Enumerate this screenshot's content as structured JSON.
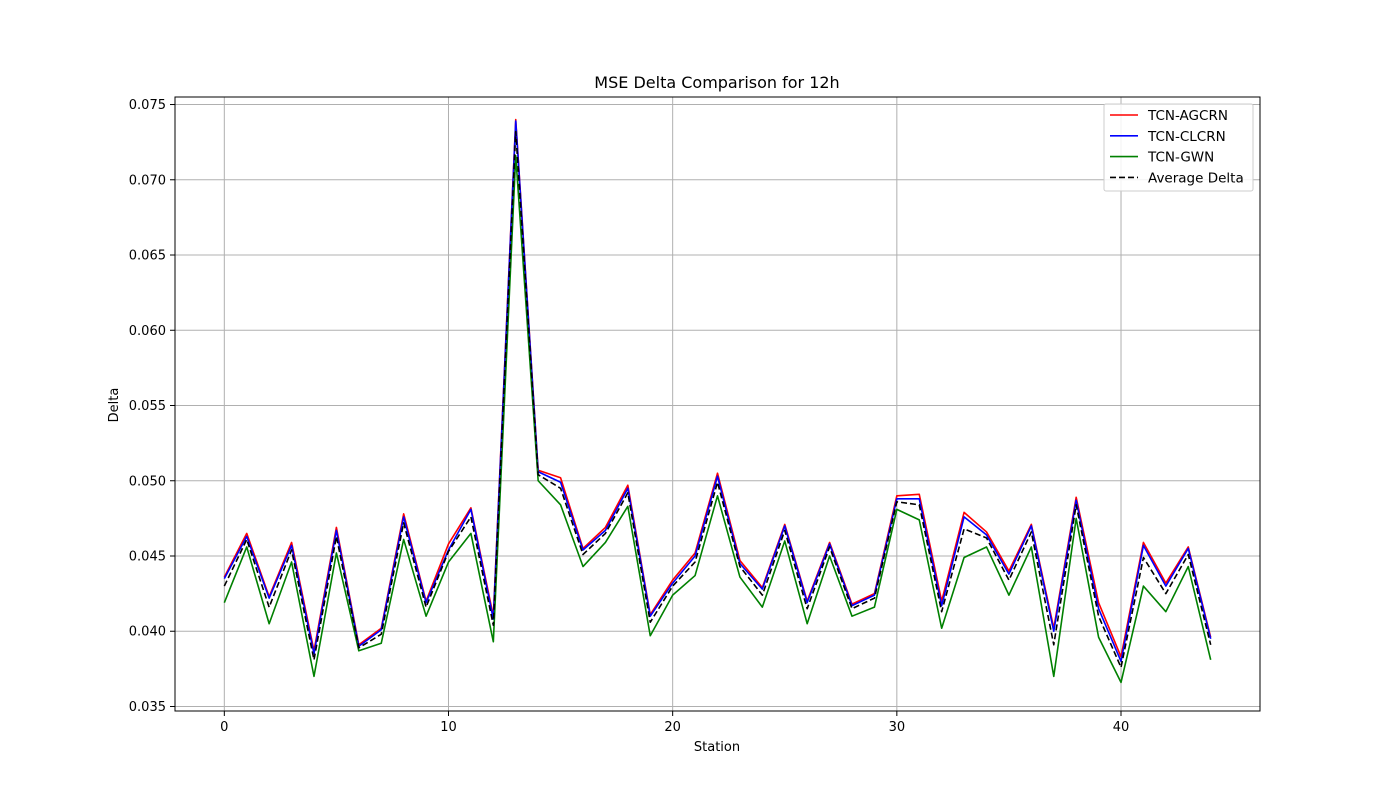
{
  "chart_data": {
    "type": "line",
    "title": "MSE Delta Comparison for 12h",
    "xlabel": "Station",
    "ylabel": "Delta",
    "xlim": [
      -2.2,
      46.2
    ],
    "ylim": [
      0.0347,
      0.0755
    ],
    "xticks": [
      0,
      10,
      20,
      30,
      40
    ],
    "xtick_labels": [
      "0",
      "10",
      "20",
      "30",
      "40"
    ],
    "yticks": [
      0.035,
      0.04,
      0.045,
      0.05,
      0.055,
      0.06,
      0.065,
      0.07,
      0.075
    ],
    "ytick_labels": [
      "0.035",
      "0.040",
      "0.045",
      "0.050",
      "0.055",
      "0.060",
      "0.065",
      "0.070",
      "0.075"
    ],
    "grid": true,
    "legend_position": "top-right",
    "x": [
      0,
      1,
      2,
      3,
      4,
      5,
      6,
      7,
      8,
      9,
      10,
      11,
      12,
      13,
      14,
      15,
      16,
      17,
      18,
      19,
      20,
      21,
      22,
      23,
      24,
      25,
      26,
      27,
      28,
      29,
      30,
      31,
      32,
      33,
      34,
      35,
      36,
      37,
      38,
      39,
      40,
      41,
      42,
      43,
      44
    ],
    "series": [
      {
        "name": "TCN-AGCRN",
        "color": "#ff0000",
        "dash": "solid",
        "values": [
          0.0436,
          0.0465,
          0.0423,
          0.0459,
          0.0387,
          0.0469,
          0.0391,
          0.0402,
          0.0478,
          0.042,
          0.0458,
          0.0482,
          0.041,
          0.074,
          0.0507,
          0.0502,
          0.0455,
          0.0469,
          0.0497,
          0.0411,
          0.0434,
          0.0452,
          0.0505,
          0.0447,
          0.0429,
          0.0471,
          0.042,
          0.0459,
          0.0418,
          0.0425,
          0.049,
          0.0491,
          0.042,
          0.0479,
          0.0466,
          0.044,
          0.0471,
          0.0402,
          0.0489,
          0.0419,
          0.0383,
          0.0459,
          0.0432,
          0.0456,
          0.0396
        ]
      },
      {
        "name": "TCN-CLCRN",
        "color": "#0000ff",
        "dash": "solid",
        "values": [
          0.0435,
          0.0463,
          0.0422,
          0.0457,
          0.0385,
          0.0467,
          0.039,
          0.0401,
          0.0476,
          0.0419,
          0.0454,
          0.0481,
          0.0408,
          0.0739,
          0.0506,
          0.0499,
          0.0454,
          0.0467,
          0.0495,
          0.041,
          0.0432,
          0.045,
          0.0503,
          0.0445,
          0.0428,
          0.047,
          0.0419,
          0.0458,
          0.0417,
          0.0424,
          0.0488,
          0.0488,
          0.0417,
          0.0476,
          0.0464,
          0.0438,
          0.047,
          0.04,
          0.0487,
          0.0415,
          0.038,
          0.0457,
          0.043,
          0.0455,
          0.0395
        ]
      },
      {
        "name": "TCN-GWN",
        "color": "#008000",
        "dash": "solid",
        "values": [
          0.0419,
          0.0456,
          0.0405,
          0.0446,
          0.037,
          0.0452,
          0.0387,
          0.0392,
          0.0461,
          0.041,
          0.0446,
          0.0465,
          0.0393,
          0.0716,
          0.05,
          0.0484,
          0.0443,
          0.0459,
          0.0483,
          0.0397,
          0.0424,
          0.0437,
          0.049,
          0.0436,
          0.0416,
          0.046,
          0.0405,
          0.045,
          0.041,
          0.0416,
          0.0481,
          0.0474,
          0.0402,
          0.0449,
          0.0456,
          0.0424,
          0.0456,
          0.037,
          0.0475,
          0.0396,
          0.0366,
          0.043,
          0.0413,
          0.0443,
          0.0381
        ]
      },
      {
        "name": "Average Delta",
        "color": "#000000",
        "dash": "dashed",
        "values": [
          0.043,
          0.0461,
          0.0416,
          0.0454,
          0.0381,
          0.0463,
          0.0389,
          0.0398,
          0.0472,
          0.0416,
          0.0453,
          0.0476,
          0.0404,
          0.0732,
          0.0504,
          0.0495,
          0.0451,
          0.0465,
          0.0492,
          0.0406,
          0.043,
          0.0446,
          0.0499,
          0.0443,
          0.0424,
          0.0467,
          0.0415,
          0.0456,
          0.0415,
          0.0422,
          0.0486,
          0.0484,
          0.0413,
          0.0468,
          0.0462,
          0.0434,
          0.0466,
          0.0391,
          0.0484,
          0.041,
          0.0376,
          0.0449,
          0.0425,
          0.0451,
          0.0391
        ]
      }
    ]
  }
}
